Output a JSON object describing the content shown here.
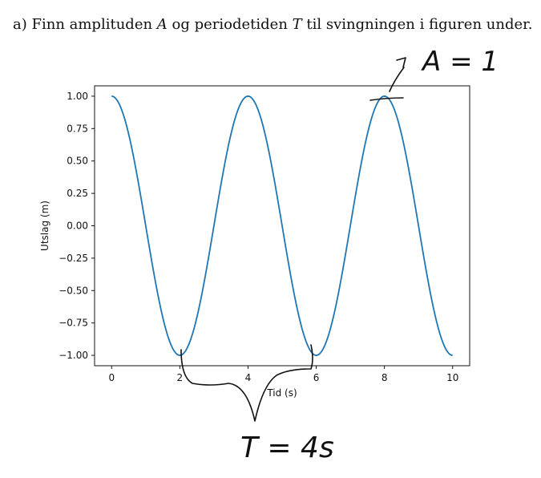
{
  "question": {
    "prefix": "a) Finn amplituden",
    "var_a": "A",
    "middle": "og periodetiden",
    "var_t": "T",
    "suffix": "til svingningen i figuren under."
  },
  "chart_data": {
    "type": "line",
    "title": "",
    "xlabel": "Tid (s)",
    "ylabel": "Utslag (m)",
    "xlim": [
      -0.5,
      10.5
    ],
    "ylim": [
      -1.08,
      1.08
    ],
    "xticks": [
      0,
      2,
      4,
      6,
      8,
      10
    ],
    "xtick_labels": [
      "0",
      "2",
      "4",
      "6",
      "8",
      "10"
    ],
    "yticks": [
      1.0,
      0.75,
      0.5,
      0.25,
      0.0,
      -0.25,
      -0.5,
      -0.75,
      -1.0
    ],
    "ytick_labels": [
      "1.00",
      "0.75",
      "0.50",
      "0.25",
      "0.00",
      "−0.25",
      "−0.50",
      "−0.75",
      "−1.00"
    ],
    "grid": false,
    "series": [
      {
        "function": "cos(pi*t/2)",
        "x_range": [
          0,
          10
        ],
        "amplitude": 1,
        "period": 4,
        "color": "#1f77b4"
      }
    ]
  },
  "annotations": {
    "amplitude_note": "A = 1",
    "period_note": "T = 4s"
  }
}
